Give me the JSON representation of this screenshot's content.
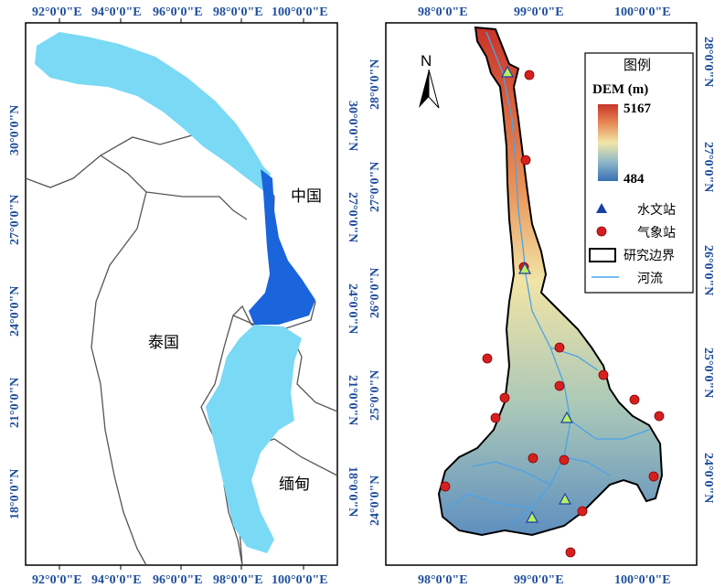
{
  "left_map": {
    "top_ticks": [
      "92°0'0\"E",
      "94°0'0\"E",
      "96°0'0\"E",
      "98°0'0\"E",
      "100°0'0\"E"
    ],
    "bottom_ticks": [
      "92°0'0\"E",
      "94°0'0\"E",
      "96°0'0\"E",
      "98°0'0\"E",
      "100°0'0\"E"
    ],
    "left_ticks": [
      "30°0'0\"N",
      "27°0'0\"N",
      "24°0'0\"N",
      "21°0'0\"N",
      "18°0'0\"N"
    ],
    "right_ticks": [
      "30°0'0\"N",
      "27°0'0\"N",
      "24°0'0\"N",
      "21°0'0\"N",
      "18°0'0\"N"
    ],
    "labels": {
      "china": "中国",
      "thailand": "泰国",
      "myanmar": "缅甸"
    },
    "colors": {
      "basin_upper": "#7ad9f5",
      "basin_middle": "#1a64dc",
      "basin_lower": "#7ad9f5",
      "border": "#555555"
    }
  },
  "right_map": {
    "top_ticks": [
      "98°0'0\"E",
      "99°0'0\"E",
      "100°0'0\"E"
    ],
    "bottom_ticks": [
      "98°0'0\"E",
      "99°0'0\"E",
      "100°0'0\"E"
    ],
    "left_ticks": [
      "28°0'0\"N",
      "27°0'0\"N",
      "26°0'0\"N",
      "25°0'0\"N",
      "24°0'0\"N"
    ],
    "right_ticks": [
      "28°0'0\"N",
      "27°0'0\"N",
      "26°0'0\"N",
      "25°0'0\"N",
      "24°0'0\"N"
    ],
    "north_label": "N",
    "legend": {
      "title": "图例",
      "dem_label": "DEM (m)",
      "dem_max": "5167",
      "dem_min": "484",
      "hydro_station": "水文站",
      "weather_station": "气象站",
      "study_boundary": "研究边界",
      "river": "河流"
    },
    "colors": {
      "dem_high": "#c8342a",
      "dem_mid": "#f2e6a8",
      "dem_low": "#3a6fb5",
      "hydro_station": "#1a3fa8",
      "weather_station": "#d62020",
      "river": "#4aa3e8"
    },
    "hydro_station_count": 5,
    "weather_station_count": 17
  }
}
